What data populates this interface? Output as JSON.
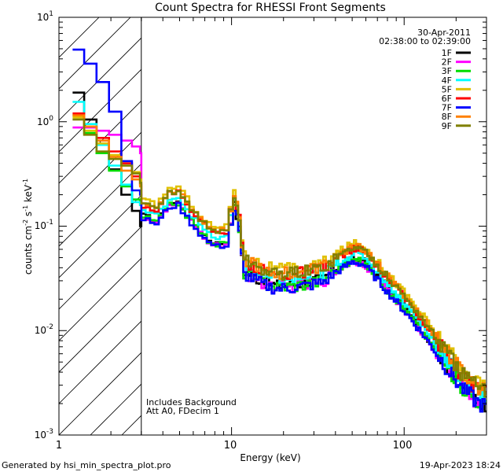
{
  "chart_data": {
    "type": "line",
    "title": "Count Spectra for RHESSI Front Segments",
    "xlabel": "Energy (keV)",
    "ylabel_parts": [
      "counts cm",
      "-2",
      " s",
      "-1",
      " keV",
      "-1"
    ],
    "x_scale": "log",
    "y_scale": "log",
    "xlim": [
      1,
      300
    ],
    "ylim": [
      0.001,
      10
    ],
    "x_ticks": [
      {
        "value": 1,
        "label": "1"
      },
      {
        "value": 10,
        "label": "10"
      },
      {
        "value": 100,
        "label": "100"
      }
    ],
    "y_ticks": [
      {
        "value": 0.001,
        "base": "10",
        "exp": "-3"
      },
      {
        "value": 0.01,
        "base": "10",
        "exp": "-2"
      },
      {
        "value": 0.1,
        "base": "10",
        "exp": "-1"
      },
      {
        "value": 1,
        "base": "10",
        "exp": "0"
      },
      {
        "value": 10,
        "base": "10",
        "exp": "1"
      }
    ],
    "date": "30-Apr-2011",
    "time_range": "02:38:00 to 02:39:00",
    "hatched_below_keV": 3,
    "annotations": [
      "Includes Background",
      "Att A0, FDecim 1"
    ],
    "series": [
      {
        "name": "1F",
        "color": "#000000",
        "offset": -0.05,
        "lowend": [
          1.9,
          1.05,
          0.62,
          0.35,
          0.2,
          0.14,
          0.1
        ]
      },
      {
        "name": "2F",
        "color": "#ff00ff",
        "offset": -0.07,
        "lowend": [
          0.88,
          0.88,
          0.82,
          0.75,
          0.66,
          0.58,
          0.5
        ]
      },
      {
        "name": "3F",
        "color": "#00dd00",
        "offset": -0.06,
        "lowend": [
          1.15,
          0.78,
          0.5,
          0.34,
          0.24,
          0.18,
          0.16
        ]
      },
      {
        "name": "4F",
        "color": "#00ffff",
        "offset": 0.0,
        "lowend": [
          1.55,
          0.95,
          0.6,
          0.38,
          0.25,
          0.17,
          0.16
        ]
      },
      {
        "name": "5F",
        "color": "#e0c000",
        "offset": 0.1,
        "lowend": [
          1.1,
          0.82,
          0.62,
          0.48,
          0.38,
          0.33,
          0.28
        ]
      },
      {
        "name": "6F",
        "color": "#ff0000",
        "offset": 0.05,
        "lowend": [
          1.2,
          0.9,
          0.7,
          0.52,
          0.4,
          0.3,
          0.25
        ]
      },
      {
        "name": "7F",
        "color": "#0000ff",
        "offset": -0.08,
        "lowend": [
          4.9,
          3.6,
          2.4,
          1.25,
          0.42,
          0.22,
          0.2
        ]
      },
      {
        "name": "8F",
        "color": "#ff8000",
        "offset": 0.07,
        "lowend": [
          1.15,
          0.9,
          0.66,
          0.46,
          0.34,
          0.28,
          0.24
        ]
      },
      {
        "name": "9F",
        "color": "#808000",
        "offset": 0.06,
        "lowend": [
          1.05,
          0.75,
          0.52,
          0.44,
          0.38,
          0.32,
          0.26
        ]
      }
    ]
  },
  "footer": {
    "left": "Generated by hsi_min_spectra_plot.pro",
    "right": "19-Apr-2023 18:24"
  }
}
